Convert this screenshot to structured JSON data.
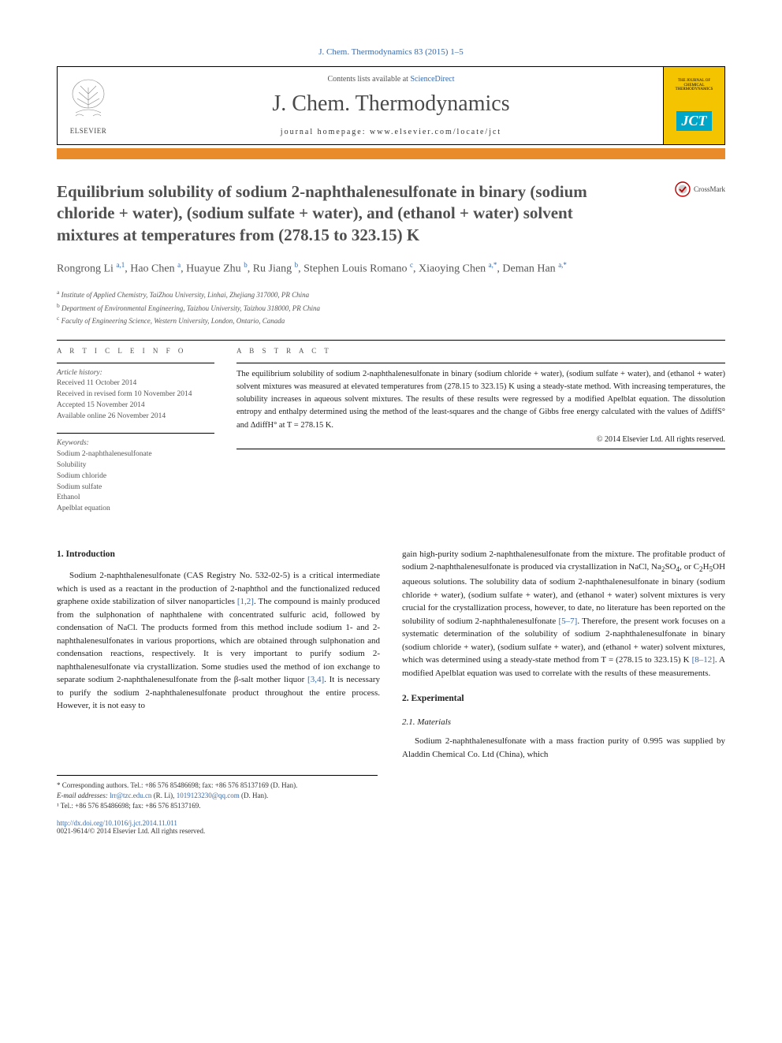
{
  "journal_ref": "J. Chem. Thermodynamics 83 (2015) 1–5",
  "header": {
    "elsevier": "ELSEVIER",
    "contents_prefix": "Contents lists available at ",
    "contents_link": "ScienceDirect",
    "journal_title": "J. Chem. Thermodynamics",
    "homepage_prefix": "journal homepage: ",
    "homepage_url": "www.elsevier.com/locate/jct",
    "cover_label": "THE JOURNAL OF CHEMICAL THERMODYNAMICS",
    "cover_abbrev": "JCT"
  },
  "crossmark": "CrossMark",
  "title": "Equilibrium solubility of sodium 2-naphthalenesulfonate in binary (sodium chloride + water), (sodium sulfate + water), and (ethanol + water) solvent mixtures at temperatures from (278.15 to 323.15) K",
  "authors_html": "Rongrong Li <sup>a,1</sup>, Hao Chen <sup>a</sup>, Huayue Zhu <sup>b</sup>, Ru Jiang <sup>b</sup>, Stephen Louis Romano <sup>c</sup>, Xiaoying Chen <sup>a,*</sup>, Deman Han <sup>a,*</sup>",
  "affiliations": [
    {
      "sup": "a",
      "text": "Institute of Applied Chemistry, TaiZhou University, Linhai, Zhejiang 317000, PR China"
    },
    {
      "sup": "b",
      "text": "Department of Environmental Engineering, Taizhou University, Taizhou 318000, PR China"
    },
    {
      "sup": "c",
      "text": "Faculty of Engineering Science, Western University, London, Ontario, Canada"
    }
  ],
  "info_heading": "A R T I C L E   I N F O",
  "abstract_heading": "A B S T R A C T",
  "history_label": "Article history:",
  "history": [
    "Received 11 October 2014",
    "Received in revised form 10 November 2014",
    "Accepted 15 November 2014",
    "Available online 26 November 2014"
  ],
  "keywords_label": "Keywords:",
  "keywords": [
    "Sodium 2-naphthalenesulfonate",
    "Solubility",
    "Sodium chloride",
    "Sodium sulfate",
    "Ethanol",
    "Apelblat equation"
  ],
  "abstract": "The equilibrium solubility of sodium 2-naphthalenesulfonate in binary (sodium chloride + water), (sodium sulfate + water), and (ethanol + water) solvent mixtures was measured at elevated temperatures from (278.15 to 323.15) K using a steady-state method. With increasing temperatures, the solubility increases in aqueous solvent mixtures. The results of these results were regressed by a modified Apelblat equation. The dissolution entropy and enthalpy determined using the method of the least-squares and the change of Gibbs free energy calculated with the values of ΔdiffS° and ΔdiffH° at T = 278.15 K.",
  "copyright": "© 2014 Elsevier Ltd. All rights reserved.",
  "sections": {
    "intro_heading": "1. Introduction",
    "intro_left": "Sodium 2-naphthalenesulfonate (CAS Registry No. 532-02-5) is a critical intermediate which is used as a reactant in the production of 2-naphthol and the functionalized reduced graphene oxide stabilization of silver nanoparticles [1,2]. The compound is mainly produced from the sulphonation of naphthalene with concentrated sulfuric acid, followed by condensation of NaCl. The products formed from this method include sodium 1- and 2-naphthalenesulfonates in various proportions, which are obtained through sulphonation and condensation reactions, respectively. It is very important to purify sodium 2-naphthalenesulfonate via crystallization. Some studies used the method of ion exchange to separate sodium 2-naphthalenesulfonate from the β-salt mother liquor [3,4]. It is necessary to purify the sodium 2-naphthalenesulfonate product throughout the entire process. However, it is not easy to",
    "intro_right": "gain high-purity sodium 2-naphthalenesulfonate from the mixture. The profitable product of sodium 2-naphthalenesulfonate is produced via crystallization in NaCl, Na2SO4, or C2H5OH aqueous solutions. The solubility data of sodium 2-naphthalenesulfonate in binary (sodium chloride + water), (sodium sulfate + water), and (ethanol + water) solvent mixtures is very crucial for the crystallization process, however, to date, no literature has been reported on the solubility of sodium 2-naphthalenesulfonate [5–7]. Therefore, the present work focuses on a systematic determination of the solubility of sodium 2-naphthalenesulfonate in binary (sodium chloride + water), (sodium sulfate + water), and (ethanol + water) solvent mixtures, which was determined using a steady-state method from T = (278.15 to 323.15) K [8–12]. A modified Apelblat equation was used to correlate with the results of these measurements.",
    "exp_heading": "2. Experimental",
    "mat_heading": "2.1. Materials",
    "mat_text": "Sodium 2-naphthalenesulfonate with a mass fraction purity of 0.995 was supplied by Aladdin Chemical Co. Ltd (China), which"
  },
  "footnotes": {
    "corr": "* Corresponding authors. Tel.: +86 576 85486698; fax: +86 576 85137169 (D. Han).",
    "emails_label": "E-mail addresses: ",
    "email1": "lrr@tzc.edu.cn",
    "email1_owner": " (R. Li), ",
    "email2": "1019123230@qq.com",
    "email2_owner": " (D. Han).",
    "note1": "¹ Tel.: +86 576 85486698; fax: +86 576 85137169."
  },
  "doi": "http://dx.doi.org/10.1016/j.jct.2014.11.011",
  "issn": "0021-9614/© 2014 Elsevier Ltd. All rights reserved.",
  "refs": {
    "r12": "[1,2]",
    "r34": "[3,4]",
    "r57": "[5–7]",
    "r812": "[8–12]"
  },
  "colors": {
    "link": "#3a6aa8",
    "orange": "#e98b2a",
    "yellow": "#f5c400",
    "teal": "#00a6c7"
  }
}
